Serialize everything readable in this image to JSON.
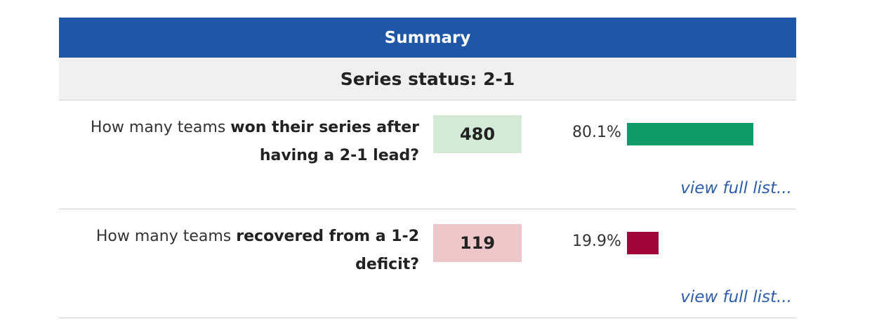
{
  "summary": {
    "title": "Summary",
    "series_status": "Series status: 2-1"
  },
  "rows": [
    {
      "question_prefix": "How many teams ",
      "question_bold": "won their series after having a 2-1 lead?",
      "count": "480",
      "percent_label": "80.1%",
      "percent_value": 80.1,
      "bar_color": "#0f9a6a",
      "count_bg": "#d3ead6",
      "link": "view full list..."
    },
    {
      "question_prefix": "How many teams ",
      "question_bold": "recovered from a 1-2 deficit?",
      "count": "119",
      "percent_label": "19.9%",
      "percent_value": 19.9,
      "bar_color": "#a0053a",
      "count_bg": "#ecc6c8",
      "link": "view full list..."
    }
  ]
}
